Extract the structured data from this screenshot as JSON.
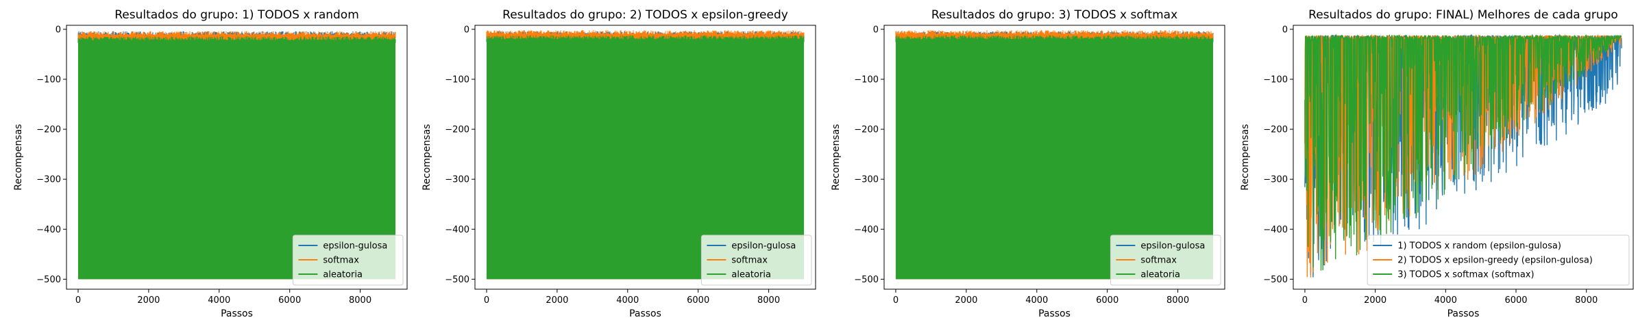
{
  "chart_data": [
    {
      "type": "line",
      "title": "Resultados do grupo: 1) TODOS x random",
      "xlabel": "Passos",
      "ylabel": "Recompensas",
      "xlim": [
        -330,
        9330
      ],
      "ylim": [
        -520,
        8
      ],
      "xticks": [
        0,
        2000,
        4000,
        6000,
        8000
      ],
      "yticks": [
        0,
        -100,
        -200,
        -300,
        -400,
        -500
      ],
      "legend_loc": "lower-right",
      "series": [
        {
          "name": "epsilon-gulosa",
          "color": "#1f77b4",
          "pattern": "dense",
          "upper": -12,
          "lower": -500,
          "x_end": 9000
        },
        {
          "name": "softmax",
          "color": "#ff7f0e",
          "pattern": "dense",
          "upper": -12,
          "lower": -500,
          "x_end": 9000
        },
        {
          "name": "aleatoria",
          "color": "#2ca02c",
          "pattern": "dense",
          "upper": -22,
          "lower": -500,
          "x_end": 9000
        }
      ]
    },
    {
      "type": "line",
      "title": "Resultados do grupo: 2) TODOS x epsilon-greedy",
      "xlabel": "Passos",
      "ylabel": "Recompensas",
      "xlim": [
        -330,
        9330
      ],
      "ylim": [
        -520,
        8
      ],
      "xticks": [
        0,
        2000,
        4000,
        6000,
        8000
      ],
      "yticks": [
        0,
        -100,
        -200,
        -300,
        -400,
        -500
      ],
      "legend_loc": "lower-right",
      "series": [
        {
          "name": "epsilon-gulosa",
          "color": "#1f77b4",
          "pattern": "dense",
          "upper": -12,
          "lower": -500,
          "x_end": 9000
        },
        {
          "name": "softmax",
          "color": "#ff7f0e",
          "pattern": "dense",
          "upper": -10,
          "lower": -500,
          "x_end": 9000
        },
        {
          "name": "aleatoria",
          "color": "#2ca02c",
          "pattern": "dense",
          "upper": -20,
          "lower": -500,
          "x_end": 9000
        }
      ]
    },
    {
      "type": "line",
      "title": "Resultados do grupo: 3) TODOS x softmax",
      "xlabel": "Passos",
      "ylabel": "Recompensas",
      "xlim": [
        -330,
        9330
      ],
      "ylim": [
        -520,
        8
      ],
      "xticks": [
        0,
        2000,
        4000,
        6000,
        8000
      ],
      "yticks": [
        0,
        -100,
        -200,
        -300,
        -400,
        -500
      ],
      "legend_loc": "lower-right",
      "series": [
        {
          "name": "epsilon-gulosa",
          "color": "#1f77b4",
          "pattern": "dense",
          "upper": -12,
          "lower": -500,
          "x_end": 9000
        },
        {
          "name": "softmax",
          "color": "#ff7f0e",
          "pattern": "dense",
          "upper": -10,
          "lower": -500,
          "x_end": 9000
        },
        {
          "name": "aleatoria",
          "color": "#2ca02c",
          "pattern": "dense",
          "upper": -20,
          "lower": -500,
          "x_end": 9000
        }
      ]
    },
    {
      "type": "line",
      "title": "Resultados do grupo: FINAL) Melhores de cada grupo",
      "xlabel": "Passos",
      "ylabel": "Recompensas",
      "xlim": [
        -330,
        9330
      ],
      "ylim": [
        -520,
        8
      ],
      "xticks": [
        0,
        2000,
        4000,
        6000,
        8000
      ],
      "yticks": [
        0,
        -100,
        -200,
        -300,
        -400,
        -500
      ],
      "legend_loc": "lower-right",
      "series": [
        {
          "name": "1) TODOS x random (epsilon-gulosa)",
          "color": "#1f77b4",
          "pattern": "learning",
          "upper": -12,
          "lower_start": -500,
          "lower_end": -130,
          "x_end": 9000
        },
        {
          "name": "2) TODOS x epsilon-greedy (epsilon-gulosa)",
          "color": "#ff7f0e",
          "pattern": "learning",
          "upper": -12,
          "lower_start": -500,
          "lower_end": -30,
          "x_end": 9000
        },
        {
          "name": "3) TODOS x softmax (softmax)",
          "color": "#2ca02c",
          "pattern": "learning",
          "upper": -12,
          "lower_start": -500,
          "lower_end": -15,
          "x_end": 9000
        }
      ]
    }
  ]
}
